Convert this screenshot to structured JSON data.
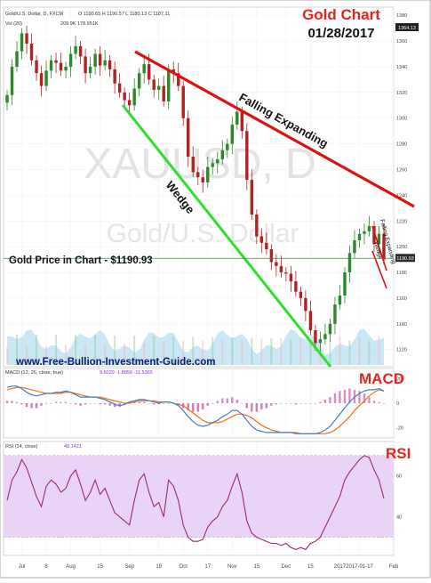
{
  "chart_data": [
    {
      "type": "candlestick",
      "title": "Gold Chart",
      "subtitle": "01/28/2017",
      "header": {
        "symbol": "Gold/U.S. Dollar, D, FXCM",
        "ohlc": "O 1190.65 H 1190.57 L 1180.13 C 1187.11",
        "vol_label": "Vol (20)",
        "vol_values": "209.9K  178.951K"
      },
      "watermark_symbol": "XAUUSD, D",
      "watermark_name": "Gold/U.S. Dollar",
      "price_note": "Gold Price in Chart - $1190.93",
      "website": "www.Free-Bullion-Investment-Guide.com",
      "pattern_labels": {
        "falling_expanding": "Falling Expanding",
        "wedge": "Wedge",
        "small_falling_expanding": "Falling Expanding",
        "small_wedge": "Wedge"
      },
      "ylim": [
        1108,
        1385
      ],
      "y_ticks": [
        1120,
        1140,
        1160,
        1180,
        1200,
        1220,
        1240,
        1260,
        1280,
        1300,
        1320,
        1340,
        1360,
        1380
      ],
      "price_tag_top": "1364.13",
      "price_tag_current": "1190.93",
      "current_price": 1190.93,
      "x_ticks": [
        {
          "label": "Jul",
          "i": 3
        },
        {
          "label": "8",
          "i": 8
        },
        {
          "label": "Aug",
          "i": 13
        },
        {
          "label": "15",
          "i": 19
        },
        {
          "label": "Sep",
          "i": 25
        },
        {
          "label": "19",
          "i": 31
        },
        {
          "label": "Oct",
          "i": 36
        },
        {
          "label": "17",
          "i": 41
        },
        {
          "label": "Nov",
          "i": 46
        },
        {
          "label": "15",
          "i": 51
        },
        {
          "label": "Dec",
          "i": 57
        },
        {
          "label": "15",
          "i": 62
        },
        {
          "label": "2017",
          "i": 68
        },
        {
          "label": "2017-01-17",
          "i": 72
        },
        {
          "label": "Feb",
          "i": 79
        }
      ],
      "close": [
        1318,
        1340,
        1352,
        1366,
        1358,
        1345,
        1335,
        1325,
        1337,
        1345,
        1343,
        1337,
        1340,
        1350,
        1356,
        1348,
        1335,
        1340,
        1350,
        1341,
        1345,
        1338,
        1327,
        1320,
        1314,
        1310,
        1323,
        1335,
        1342,
        1330,
        1322,
        1325,
        1313,
        1338,
        1335,
        1325,
        1300,
        1270,
        1258,
        1254,
        1250,
        1262,
        1265,
        1268,
        1275,
        1280,
        1295,
        1305,
        1290,
        1252,
        1225,
        1208,
        1203,
        1198,
        1188,
        1185,
        1180,
        1179,
        1173,
        1165,
        1160,
        1150,
        1135,
        1125,
        1128,
        1132,
        1140,
        1155,
        1162,
        1180,
        1195,
        1205,
        1210,
        1212,
        1216,
        1202,
        1210,
        1190
      ],
      "macd": {
        "label": "MACD (12, 26, close, true)",
        "values": "9.6029  -1.8856  -11.5365",
        "ylim": [
          -27,
          27
        ],
        "y_ticks": [
          20,
          0,
          -20
        ],
        "line": [
          13,
          14,
          14,
          12,
          9,
          7,
          6,
          7,
          8,
          8,
          9,
          9,
          10,
          9,
          7,
          5,
          5,
          5,
          5,
          4,
          3,
          1,
          -1,
          -2,
          -1,
          1,
          2,
          3,
          3,
          2,
          1,
          0,
          1,
          1,
          0,
          -2,
          -6,
          -11,
          -15,
          -18,
          -19,
          -18,
          -16,
          -14,
          -11,
          -9,
          -6,
          -6,
          -9,
          -14,
          -19,
          -22,
          -23,
          -24,
          -24,
          -24,
          -24,
          -24,
          -24,
          -25,
          -25,
          -25,
          -25,
          -25,
          -24,
          -22,
          -19,
          -14,
          -9,
          -4,
          1,
          5,
          8,
          10,
          11,
          11,
          12,
          10
        ],
        "signal": [
          11,
          12,
          13,
          13,
          12,
          11,
          10,
          9,
          8,
          8,
          8,
          8,
          9,
          9,
          8,
          7,
          6,
          5,
          5,
          5,
          4,
          3,
          2,
          1,
          0,
          0,
          1,
          2,
          2,
          2,
          2,
          1,
          1,
          1,
          0,
          -1,
          -2,
          -5,
          -8,
          -11,
          -14,
          -16,
          -16,
          -16,
          -15,
          -13,
          -11,
          -9,
          -9,
          -10,
          -12,
          -15,
          -18,
          -20,
          -22,
          -23,
          -24,
          -24,
          -24,
          -24,
          -25,
          -25,
          -25,
          -25,
          -25,
          -25,
          -24,
          -22,
          -19,
          -15,
          -11,
          -6,
          -2,
          2,
          6,
          9,
          11,
          10
        ]
      },
      "rsi": {
        "label": "RSI (14, close)",
        "value": "49.1421",
        "ylim": [
          22,
          76
        ],
        "y_ticks": [
          60,
          40
        ],
        "band": [
          30,
          70
        ],
        "values": [
          48,
          58,
          62,
          68,
          64,
          57,
          50,
          45,
          55,
          58,
          56,
          52,
          54,
          60,
          63,
          56,
          48,
          52,
          58,
          51,
          54,
          48,
          42,
          40,
          38,
          36,
          48,
          58,
          61,
          52,
          45,
          47,
          40,
          58,
          55,
          48,
          36,
          30,
          28,
          28,
          29,
          35,
          38,
          40,
          45,
          48,
          55,
          61,
          52,
          38,
          32,
          30,
          29,
          28,
          27,
          27,
          26,
          27,
          25,
          24,
          25,
          24,
          27,
          28,
          30,
          35,
          40,
          45,
          50,
          58,
          62,
          65,
          68,
          70,
          69,
          63,
          58,
          49
        ]
      }
    }
  ],
  "colors": {
    "red_line": "#e01010",
    "green_line": "#2ee02e",
    "title_red": "#e8231e",
    "candle_up": "#2a8a2a",
    "candle_down": "#b22222",
    "macd_line": "#3a7fd0",
    "signal_line": "#f07010",
    "rsi_line": "#a0247e",
    "rsi_band": "#e9d4f6"
  }
}
